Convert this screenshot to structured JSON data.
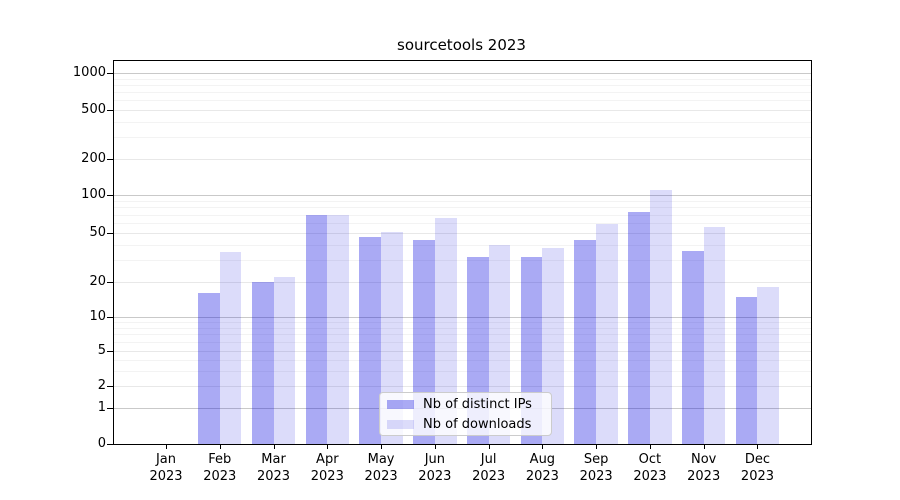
{
  "chart_data": {
    "type": "bar",
    "title": "sourcetools 2023",
    "x": {
      "months": [
        "Jan",
        "Feb",
        "Mar",
        "Apr",
        "May",
        "Jun",
        "Jul",
        "Aug",
        "Sep",
        "Oct",
        "Nov",
        "Dec"
      ],
      "year": "2023"
    },
    "y_axis": {
      "scale": "symlog",
      "tick_labels": [
        "0",
        "1",
        "2",
        "5",
        "10",
        "20",
        "50",
        "100",
        "200",
        "500",
        "1000"
      ],
      "ylim": [
        0,
        1250
      ],
      "grid": true
    },
    "series": [
      {
        "name": "Nb of distinct IPs",
        "color": "#a8a8f2",
        "fill_rgba": "rgba(8,8,222,0.345)",
        "values": [
          0,
          16,
          20,
          70,
          46,
          44,
          32,
          32,
          44,
          73,
          36,
          15
        ]
      },
      {
        "name": "Nb of downloads",
        "color": "#dbdbf9",
        "fill_rgba": "rgba(8,8,222,0.14)",
        "values": [
          0,
          35,
          22,
          70,
          51,
          66,
          40,
          38,
          59,
          110,
          56,
          18
        ]
      }
    ],
    "legend": {
      "position": "lower center"
    }
  },
  "colors": {
    "grid_major": "#c9c9c9",
    "grid_mid": "#e8e8e8",
    "grid_minor": "#f3f3f3",
    "spine": "#000000",
    "legend_border": "#cccccc",
    "background": "#ffffff"
  }
}
